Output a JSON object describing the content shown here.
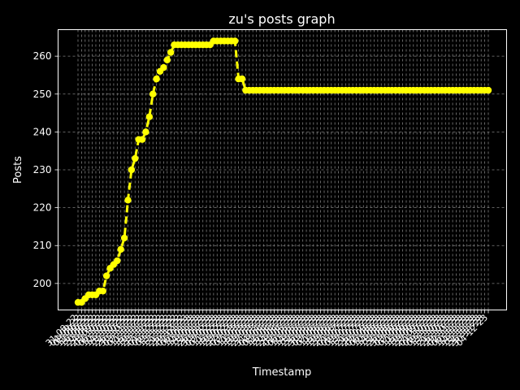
{
  "chart_data": {
    "type": "line",
    "title": "zu's posts graph",
    "xlabel": "Timestamp",
    "ylabel": "Posts",
    "ylim": [
      193,
      267
    ],
    "yticks": [
      200,
      210,
      220,
      230,
      240,
      250,
      260
    ],
    "grid": true,
    "colors": {
      "background": "#000000",
      "axes": "#ffffff",
      "grid": "#808080",
      "line": "#ffff00"
    },
    "xtick_labels": [
      "31-08-22",
      "04-09-22",
      "08-09-22",
      "12-09-22",
      "16-09-22",
      "20-09-22",
      "24-09-22",
      "28-09-22",
      "02-10-22",
      "06-10-22",
      "10-10-22",
      "14-10-22",
      "18-10-22",
      "22-10-22",
      "26-10-22",
      "30-10-22",
      "03-11-22",
      "07-11-22",
      "11-11-22",
      "15-11-22",
      "19-11-22",
      "23-11-22",
      "27-11-22",
      "01-12-22",
      "05-12-22",
      "09-12-22",
      "13-12-22",
      "17-12-22",
      "21-12-22",
      "25-12-22",
      "29-12-22",
      "02-01-23",
      "06-01-23",
      "10-01-23",
      "14-01-23",
      "18-01-23",
      "22-01-23",
      "26-01-23",
      "30-01-23",
      "03-02-23",
      "07-02-23",
      "11-02-23",
      "15-02-23",
      "19-02-23",
      "23-02-23",
      "27-02-23",
      "03-03-23",
      "07-03-23",
      "11-03-23",
      "15-03-23",
      "19-03-23",
      "23-03-23",
      "27-03-23",
      "31-03-23",
      "04-04-23",
      "08-04-23",
      "12-04-23",
      "16-04-23",
      "20-04-23",
      "24-04-23",
      "28-04-23",
      "02-05-23",
      "06-05-23",
      "10-05-23",
      "14-05-23",
      "18-05-23",
      "22-05-23",
      "26-05-23",
      "30-05-23",
      "03-06-23",
      "07-06-23",
      "11-06-23",
      "15-06-23",
      "19-06-23",
      "23-06-23",
      "27-06-23",
      "01-07-23",
      "05-07-23",
      "09-07-23",
      "13-07-23",
      "17-07-23",
      "21-07-23",
      "25-07-23",
      "29-07-23",
      "02-08-23",
      "06-08-23",
      "10-08-23",
      "14-08-23",
      "18-08-23",
      "22-08-23",
      "26-08-23",
      "30-08-23",
      "03-09-23",
      "07-09-23",
      "11-09-23",
      "15-09-23",
      "19-09-23",
      "23-09-23",
      "27-09-23",
      "01-10-23",
      "05-10-23",
      "09-10-23",
      "13-10-23",
      "17-10-23",
      "21-10-23",
      "25-10-23",
      "29-10-23",
      "02-11-23",
      "06-11-23",
      "10-11-23",
      "14-11-23",
      "18-11-23",
      "22-11-23",
      "26-11-23",
      "30-11-23",
      "04-12-23"
    ],
    "series": [
      {
        "values": [
          195,
          195,
          196,
          197,
          197,
          197,
          198,
          198,
          202,
          204,
          205,
          206,
          209,
          212,
          222,
          230,
          233,
          238,
          238,
          240,
          244,
          250,
          254,
          256,
          257,
          259,
          261,
          263,
          263,
          263,
          263,
          263,
          263,
          263,
          263,
          263,
          263,
          263,
          264,
          264,
          264,
          264,
          264,
          264,
          264,
          254,
          254,
          251,
          251,
          251,
          251,
          251,
          251,
          251,
          251,
          251,
          251,
          251,
          251,
          251,
          251,
          251,
          251,
          251,
          251,
          251,
          251,
          251,
          251,
          251,
          251,
          251,
          251,
          251,
          251,
          251,
          251,
          251,
          251,
          251,
          251,
          251,
          251,
          251,
          251,
          251,
          251,
          251,
          251,
          251,
          251,
          251,
          251,
          251,
          251,
          251,
          251,
          251,
          251,
          251,
          251,
          251,
          251,
          251,
          251,
          251,
          251,
          251,
          251,
          251,
          251,
          251,
          251,
          251,
          251,
          251
        ]
      }
    ]
  }
}
